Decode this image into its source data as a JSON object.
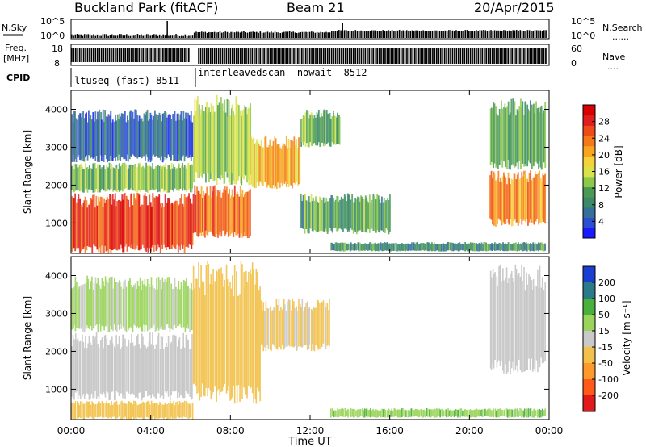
{
  "header": {
    "station": "Buckland Park (fitACF)",
    "beam": "Beam 21",
    "date": "20/Apr/2015"
  },
  "panels": {
    "nsky_label": "N.Sky",
    "nsearch_label": "N.Search",
    "nsearch_dots": "......",
    "count_tick_hi": "10^5",
    "count_tick_lo": "10^0",
    "freq_label_1": "Freq.",
    "freq_label_2": "[MHz]",
    "freq_tick_hi": "18",
    "freq_tick_lo": "8",
    "nave_label": "Nave",
    "nave_dots": "....",
    "nave_tick_hi": "60",
    "nave_tick_lo": "0",
    "cpid_label": "CPID",
    "cpid_1": "ltuseq (fast) 8511",
    "cpid_2": "interleavedscan -nowait -8512"
  },
  "colors": {
    "power_scale": [
      "#1a1aff",
      "#2a4fd0",
      "#356f9a",
      "#3a8a6a",
      "#4a9a56",
      "#8cc84a",
      "#d8e24a",
      "#f5d23a",
      "#f7a51e",
      "#f5781a",
      "#ef4b1a",
      "#e01e1e",
      "#d80000"
    ],
    "velocity_scale": [
      "#e31a1c",
      "#ff5a1a",
      "#ff9a2a",
      "#f2c14a",
      "#c9c9c9",
      "#9ad45a",
      "#48b03c",
      "#2a7a8a",
      "#1a3fd0"
    ],
    "ground_grey": "#c4c4c4"
  },
  "chart_data": [
    {
      "type": "heatmap",
      "name": "power",
      "xlabel": "",
      "ylabel": "Slant Range [km]",
      "xlim": [
        0,
        24
      ],
      "ylim": [
        200,
        4500
      ],
      "yticks": [
        "1000",
        "2000",
        "3000",
        "4000"
      ],
      "xticks": [
        "00:00",
        "04:00",
        "08:00",
        "12:00",
        "16:00",
        "20:00",
        "00:00"
      ],
      "colorbar_label": "Power [dB]",
      "colorbar_ticks": [
        "4",
        "8",
        "12",
        "16",
        "20",
        "24",
        "28"
      ],
      "colorbar_range": [
        0,
        32
      ],
      "regions": [
        {
          "t0": 0.0,
          "t1": 6.1,
          "r0": 200,
          "r1": 1800,
          "level": 27
        },
        {
          "t0": 0.0,
          "t1": 6.1,
          "r0": 1800,
          "r1": 2600,
          "level": 13
        },
        {
          "t0": 0.0,
          "t1": 6.1,
          "r0": 2600,
          "r1": 4000,
          "level": 6
        },
        {
          "t0": 6.1,
          "t1": 9.0,
          "r0": 600,
          "r1": 2000,
          "level": 24
        },
        {
          "t0": 6.1,
          "t1": 9.0,
          "r0": 2000,
          "r1": 4400,
          "level": 14
        },
        {
          "t0": 9.0,
          "t1": 11.5,
          "r0": 1900,
          "r1": 3300,
          "level": 20
        },
        {
          "t0": 11.5,
          "t1": 13.5,
          "r0": 3000,
          "r1": 4000,
          "level": 12
        },
        {
          "t0": 11.5,
          "t1": 16.0,
          "r0": 700,
          "r1": 1800,
          "level": 11
        },
        {
          "t0": 13.0,
          "t1": 23.8,
          "r0": 250,
          "r1": 500,
          "level": 9
        },
        {
          "t0": 21.0,
          "t1": 23.8,
          "r0": 900,
          "r1": 2400,
          "level": 22
        },
        {
          "t0": 21.0,
          "t1": 23.8,
          "r0": 2400,
          "r1": 4300,
          "level": 11
        }
      ]
    },
    {
      "type": "heatmap",
      "name": "velocity",
      "xlabel": "Time UT",
      "ylabel": "Slant Range [km]",
      "xlim": [
        0,
        24
      ],
      "ylim": [
        200,
        4500
      ],
      "yticks": [
        "1000",
        "2000",
        "3000",
        "4000"
      ],
      "xticks": [
        "00:00",
        "04:00",
        "08:00",
        "12:00",
        "16:00",
        "20:00",
        "00:00"
      ],
      "colorbar_label": "Velocity [m s⁻¹]",
      "colorbar_ticks": [
        "200",
        "100",
        "50",
        "15",
        "-15",
        "-50",
        "-100",
        "-200"
      ],
      "regions": [
        {
          "t0": 0.0,
          "t1": 6.1,
          "r0": 700,
          "r1": 2500,
          "level": "gs"
        },
        {
          "t0": 0.0,
          "t1": 6.1,
          "r0": 200,
          "r1": 700,
          "level": -30
        },
        {
          "t0": 0.0,
          "t1": 6.1,
          "r0": 2500,
          "r1": 4000,
          "level": 20
        },
        {
          "t0": 6.1,
          "t1": 9.5,
          "r0": 600,
          "r1": 4400,
          "level": -30
        },
        {
          "t0": 9.5,
          "t1": 13.0,
          "r0": 2000,
          "r1": 3400,
          "level": -20
        },
        {
          "t0": 13.0,
          "t1": 23.8,
          "r0": 250,
          "r1": 500,
          "level": 40
        },
        {
          "t0": 21.0,
          "t1": 23.8,
          "r0": 1400,
          "r1": 4300,
          "level": "gs"
        }
      ]
    }
  ]
}
